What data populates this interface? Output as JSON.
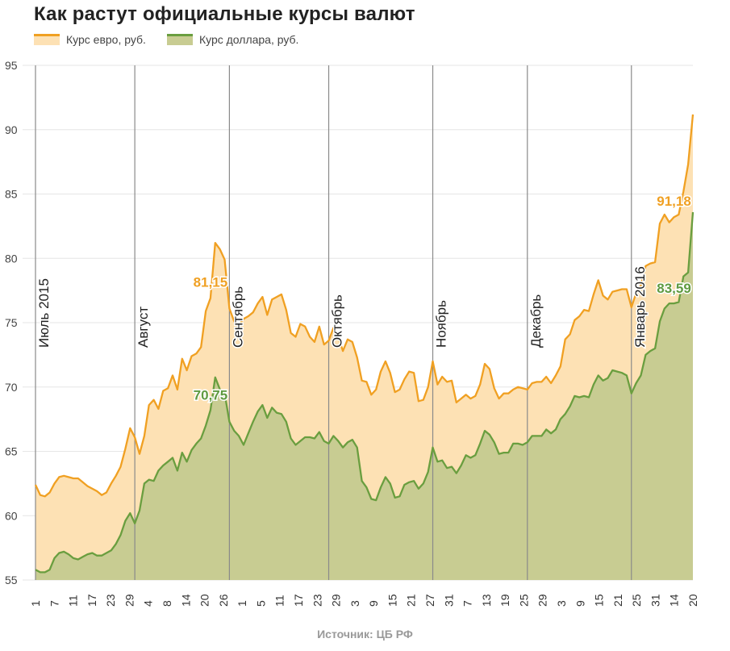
{
  "title": "Как растут официальные курсы валют",
  "source": "Источник: ЦБ РФ",
  "colors": {
    "euro_line": "#f0a022",
    "euro_fill": "#fde1b4",
    "usd_line": "#6a9e3f",
    "usd_fill": "#c8cc92",
    "grid": "#e6e6e6",
    "month_line": "#8a8a8a",
    "euro_label": "#f0a022",
    "usd_label": "#5f9a40"
  },
  "chart_data": {
    "type": "area",
    "title": "Как растут официальные курсы валют",
    "ylim": [
      55,
      95
    ],
    "yticks": [
      55,
      60,
      65,
      70,
      75,
      80,
      85,
      90,
      95
    ],
    "grid": true,
    "legend_position": "top-left",
    "x_tick_labels": [
      "1",
      "7",
      "11",
      "17",
      "23",
      "29",
      "4",
      "8",
      "14",
      "20",
      "26",
      "1",
      "5",
      "11",
      "17",
      "23",
      "29",
      "3",
      "9",
      "15",
      "21",
      "27",
      "31",
      "7",
      "13",
      "19",
      "25",
      "29",
      "3",
      "9",
      "15",
      "21",
      "25",
      "31",
      "14",
      "20"
    ],
    "month_labels": [
      {
        "label": "Июль 2015",
        "index": 0
      },
      {
        "label": "Август",
        "index": 21
      },
      {
        "label": "Сентябрь",
        "index": 41
      },
      {
        "label": "Октябрь",
        "index": 62
      },
      {
        "label": "Ноябрь",
        "index": 84
      },
      {
        "label": "Декабрь",
        "index": 104
      },
      {
        "label": "Январь 2016",
        "index": 126
      }
    ],
    "annotations": [
      {
        "text": "81,15",
        "series": "Курс евро, руб.",
        "index": 37
      },
      {
        "text": "70,75",
        "series": "Курс доллара, руб.",
        "index": 37
      },
      {
        "text": "91,18",
        "series": "Курс евро, руб.",
        "index": 135
      },
      {
        "text": "83,59",
        "series": "Курс доллара, руб.",
        "index": 135
      }
    ],
    "series": [
      {
        "name": "Курс евро, руб.",
        "values": [
          62.4,
          61.6,
          61.5,
          61.8,
          62.5,
          63.0,
          63.1,
          63.0,
          62.9,
          62.9,
          62.6,
          62.3,
          62.1,
          61.9,
          61.6,
          61.8,
          62.5,
          63.1,
          63.8,
          65.2,
          66.8,
          66.1,
          64.8,
          66.2,
          68.6,
          69.0,
          68.3,
          69.7,
          69.9,
          70.9,
          69.8,
          72.2,
          71.3,
          72.4,
          72.6,
          73.1,
          75.9,
          76.9,
          81.2,
          80.7,
          79.9,
          76.1,
          75.1,
          74.8,
          75.3,
          75.5,
          75.8,
          76.5,
          77.0,
          75.6,
          76.8,
          77.0,
          77.2,
          76.0,
          74.2,
          73.9,
          74.9,
          74.7,
          73.9,
          73.5,
          74.7,
          73.3,
          73.6,
          74.6,
          73.9,
          72.8,
          73.7,
          73.5,
          72.3,
          70.5,
          70.4,
          69.4,
          69.8,
          71.2,
          72.0,
          71.1,
          69.6,
          69.8,
          70.6,
          71.2,
          71.1,
          68.9,
          69.0,
          70.0,
          72.0,
          70.2,
          70.8,
          70.4,
          70.5,
          68.8,
          69.1,
          69.4,
          69.1,
          69.3,
          70.2,
          71.8,
          71.4,
          69.9,
          69.1,
          69.5,
          69.5,
          69.8,
          70.0,
          69.9,
          69.8,
          70.3,
          70.4,
          70.4,
          70.8,
          70.3,
          70.9,
          71.6,
          73.7,
          74.1,
          75.2,
          75.5,
          76.0,
          75.9,
          77.2,
          78.3,
          77.1,
          76.8,
          77.4,
          77.5,
          77.6,
          77.6,
          76.2,
          77.3,
          77.9,
          79.4,
          79.6,
          79.7,
          82.7,
          83.4,
          82.8,
          83.2,
          83.4,
          85.2,
          87.3,
          91.18
        ]
      },
      {
        "name": "Курс доллара, руб.",
        "values": [
          55.8,
          55.6,
          55.6,
          55.8,
          56.7,
          57.1,
          57.2,
          57.0,
          56.7,
          56.6,
          56.8,
          57.0,
          57.1,
          56.9,
          56.9,
          57.1,
          57.3,
          57.8,
          58.5,
          59.6,
          60.2,
          59.4,
          60.4,
          62.5,
          62.8,
          62.7,
          63.5,
          63.9,
          64.2,
          64.5,
          63.5,
          64.9,
          64.2,
          65.1,
          65.6,
          66.0,
          67.0,
          68.2,
          70.75,
          69.8,
          69.5,
          67.3,
          66.6,
          66.2,
          65.5,
          66.4,
          67.3,
          68.1,
          68.6,
          67.6,
          68.4,
          68.0,
          67.9,
          67.3,
          66.0,
          65.5,
          65.8,
          66.1,
          66.1,
          66.0,
          66.5,
          65.8,
          65.6,
          66.2,
          65.8,
          65.3,
          65.7,
          65.9,
          65.3,
          62.7,
          62.2,
          61.3,
          61.2,
          62.2,
          63.0,
          62.5,
          61.4,
          61.5,
          62.4,
          62.6,
          62.7,
          62.1,
          62.5,
          63.4,
          65.3,
          64.2,
          64.3,
          63.7,
          63.8,
          63.3,
          63.9,
          64.7,
          64.5,
          64.7,
          65.6,
          66.6,
          66.3,
          65.7,
          64.8,
          64.9,
          64.9,
          65.6,
          65.6,
          65.5,
          65.7,
          66.2,
          66.2,
          66.2,
          66.7,
          66.4,
          66.7,
          67.5,
          67.9,
          68.5,
          69.3,
          69.2,
          69.3,
          69.2,
          70.2,
          70.9,
          70.5,
          70.7,
          71.3,
          71.2,
          71.1,
          70.9,
          69.5,
          70.3,
          70.9,
          72.5,
          72.8,
          73.0,
          75.1,
          76.1,
          76.5,
          76.5,
          76.6,
          78.6,
          78.9,
          83.59
        ]
      }
    ]
  }
}
